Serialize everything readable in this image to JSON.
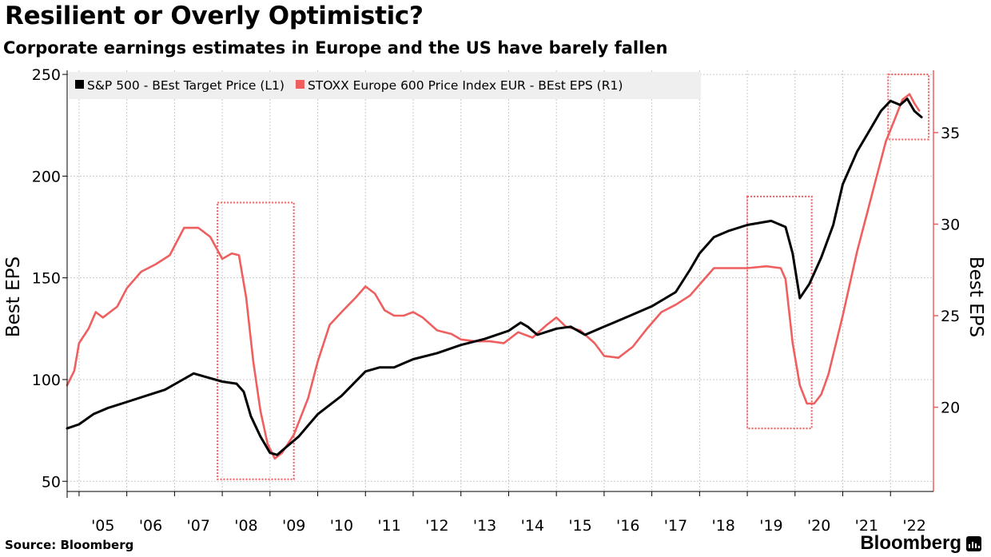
{
  "title": "Resilient or Overly Optimistic?",
  "subtitle": "Corporate earnings estimates in Europe and the US have barely fallen",
  "source": "Source: Bloomberg",
  "brand": "Bloomberg",
  "brand_icon": "bloomberg-terminal-icon",
  "colors": {
    "sp500": "#000000",
    "stoxx": "#ef5f5f",
    "highlight": "#ef5f5f",
    "grid": "#c8c8c8"
  },
  "chart_data": {
    "type": "line",
    "title": "Resilient or Overly Optimistic?",
    "subtitle": "Corporate earnings estimates in Europe and the US have barely fallen",
    "ylabel_left": "Best EPS",
    "ylabel_right": "Best EPS",
    "xlim": [
      2004.75,
      2022.9
    ],
    "ylim_left": [
      45,
      252
    ],
    "ylim_right": [
      15.4,
      38.4
    ],
    "y_ticks_left": [
      250,
      200,
      150,
      100,
      50
    ],
    "y_ticks_right": [
      35,
      30,
      25,
      20
    ],
    "x_ticks": [
      {
        "x": 2005.0,
        "label": "'05"
      },
      {
        "x": 2006.0,
        "label": "'06"
      },
      {
        "x": 2007.0,
        "label": "'07"
      },
      {
        "x": 2008.0,
        "label": "'08"
      },
      {
        "x": 2009.0,
        "label": "'09"
      },
      {
        "x": 2010.0,
        "label": "'10"
      },
      {
        "x": 2011.0,
        "label": "'11"
      },
      {
        "x": 2012.0,
        "label": "'12"
      },
      {
        "x": 2013.0,
        "label": "'13"
      },
      {
        "x": 2014.0,
        "label": "'14"
      },
      {
        "x": 2015.0,
        "label": "'15"
      },
      {
        "x": 2016.0,
        "label": "'16"
      },
      {
        "x": 2017.0,
        "label": "'17"
      },
      {
        "x": 2018.0,
        "label": "'18"
      },
      {
        "x": 2019.0,
        "label": "'19"
      },
      {
        "x": 2020.0,
        "label": "'20"
      },
      {
        "x": 2021.0,
        "label": "'21"
      },
      {
        "x": 2022.0,
        "label": "'22"
      }
    ],
    "legend": [
      {
        "name": "S&P 500 - BEst Target Price (L1)",
        "color": "#000000"
      },
      {
        "name": "STOXX Europe 600 Price Index EUR - BEst EPS (R1)",
        "color": "#ef5f5f"
      }
    ],
    "series": [
      {
        "name": "S&P 500 - BEst Target Price (L1)",
        "axis": "left",
        "color": "#000000",
        "points": [
          [
            2004.75,
            76
          ],
          [
            2005.0,
            78
          ],
          [
            2005.3,
            83
          ],
          [
            2005.6,
            86
          ],
          [
            2006.0,
            89
          ],
          [
            2006.4,
            92
          ],
          [
            2006.8,
            95
          ],
          [
            2007.1,
            99
          ],
          [
            2007.4,
            103
          ],
          [
            2007.7,
            101
          ],
          [
            2008.0,
            99
          ],
          [
            2008.3,
            98
          ],
          [
            2008.45,
            94
          ],
          [
            2008.6,
            82
          ],
          [
            2008.8,
            72
          ],
          [
            2009.0,
            64
          ],
          [
            2009.15,
            63
          ],
          [
            2009.3,
            66
          ],
          [
            2009.6,
            72
          ],
          [
            2010.0,
            83
          ],
          [
            2010.5,
            92
          ],
          [
            2011.0,
            104
          ],
          [
            2011.3,
            106
          ],
          [
            2011.6,
            106
          ],
          [
            2012.0,
            110
          ],
          [
            2012.5,
            113
          ],
          [
            2013.0,
            117
          ],
          [
            2013.5,
            120
          ],
          [
            2014.0,
            124
          ],
          [
            2014.25,
            128
          ],
          [
            2014.4,
            126
          ],
          [
            2014.6,
            122
          ],
          [
            2015.0,
            125
          ],
          [
            2015.3,
            126
          ],
          [
            2015.6,
            122
          ],
          [
            2016.0,
            126
          ],
          [
            2016.5,
            131
          ],
          [
            2017.0,
            136
          ],
          [
            2017.5,
            143
          ],
          [
            2017.8,
            154
          ],
          [
            2018.0,
            162
          ],
          [
            2018.3,
            170
          ],
          [
            2018.6,
            173
          ],
          [
            2019.0,
            176
          ],
          [
            2019.5,
            178
          ],
          [
            2019.8,
            175
          ],
          [
            2019.95,
            162
          ],
          [
            2020.1,
            140
          ],
          [
            2020.3,
            147
          ],
          [
            2020.55,
            160
          ],
          [
            2020.8,
            176
          ],
          [
            2021.0,
            196
          ],
          [
            2021.3,
            212
          ],
          [
            2021.6,
            224
          ],
          [
            2021.8,
            232
          ],
          [
            2022.0,
            237
          ],
          [
            2022.2,
            235
          ],
          [
            2022.35,
            238
          ],
          [
            2022.5,
            232
          ],
          [
            2022.65,
            229
          ]
        ]
      },
      {
        "name": "STOXX Europe 600 Price Index EUR - BEst EPS (R1)",
        "axis": "right",
        "color": "#ef5f5f",
        "points": [
          [
            2004.75,
            21.2
          ],
          [
            2004.9,
            22.0
          ],
          [
            2005.0,
            23.5
          ],
          [
            2005.2,
            24.3
          ],
          [
            2005.35,
            25.2
          ],
          [
            2005.5,
            24.9
          ],
          [
            2005.8,
            25.5
          ],
          [
            2006.0,
            26.5
          ],
          [
            2006.3,
            27.4
          ],
          [
            2006.6,
            27.8
          ],
          [
            2006.9,
            28.3
          ],
          [
            2007.2,
            29.8
          ],
          [
            2007.5,
            29.8
          ],
          [
            2007.75,
            29.3
          ],
          [
            2008.0,
            28.1
          ],
          [
            2008.2,
            28.4
          ],
          [
            2008.35,
            28.3
          ],
          [
            2008.5,
            26.0
          ],
          [
            2008.65,
            22.5
          ],
          [
            2008.8,
            19.8
          ],
          [
            2008.95,
            18.0
          ],
          [
            2009.1,
            17.2
          ],
          [
            2009.25,
            17.5
          ],
          [
            2009.5,
            18.5
          ],
          [
            2009.8,
            20.5
          ],
          [
            2010.0,
            22.5
          ],
          [
            2010.25,
            24.5
          ],
          [
            2010.5,
            25.2
          ],
          [
            2010.8,
            26.0
          ],
          [
            2011.0,
            26.6
          ],
          [
            2011.2,
            26.2
          ],
          [
            2011.4,
            25.3
          ],
          [
            2011.6,
            25.0
          ],
          [
            2011.8,
            25.0
          ],
          [
            2012.0,
            25.2
          ],
          [
            2012.2,
            24.9
          ],
          [
            2012.5,
            24.2
          ],
          [
            2012.8,
            24.0
          ],
          [
            2013.0,
            23.7
          ],
          [
            2013.3,
            23.6
          ],
          [
            2013.6,
            23.6
          ],
          [
            2013.9,
            23.5
          ],
          [
            2014.2,
            24.1
          ],
          [
            2014.5,
            23.8
          ],
          [
            2014.8,
            24.5
          ],
          [
            2015.0,
            24.9
          ],
          [
            2015.2,
            24.4
          ],
          [
            2015.5,
            24.2
          ],
          [
            2015.8,
            23.5
          ],
          [
            2016.0,
            22.8
          ],
          [
            2016.3,
            22.7
          ],
          [
            2016.6,
            23.3
          ],
          [
            2016.9,
            24.3
          ],
          [
            2017.2,
            25.2
          ],
          [
            2017.5,
            25.6
          ],
          [
            2017.8,
            26.1
          ],
          [
            2018.0,
            26.7
          ],
          [
            2018.3,
            27.6
          ],
          [
            2018.6,
            27.6
          ],
          [
            2019.0,
            27.6
          ],
          [
            2019.4,
            27.7
          ],
          [
            2019.7,
            27.6
          ],
          [
            2019.8,
            27.0
          ],
          [
            2019.95,
            23.5
          ],
          [
            2020.1,
            21.2
          ],
          [
            2020.25,
            20.2
          ],
          [
            2020.4,
            20.2
          ],
          [
            2020.55,
            20.7
          ],
          [
            2020.7,
            21.8
          ],
          [
            2021.0,
            25.0
          ],
          [
            2021.3,
            28.5
          ],
          [
            2021.5,
            30.5
          ],
          [
            2021.7,
            32.5
          ],
          [
            2021.9,
            34.5
          ],
          [
            2022.1,
            35.8
          ],
          [
            2022.25,
            36.8
          ],
          [
            2022.4,
            37.1
          ],
          [
            2022.5,
            36.6
          ],
          [
            2022.6,
            36.2
          ]
        ]
      }
    ],
    "highlight_boxes": [
      {
        "x0": 2007.9,
        "x1": 2009.5,
        "y0": 51,
        "y1": 187
      },
      {
        "x0": 2019.0,
        "x1": 2020.35,
        "y0": 76,
        "y1": 190
      },
      {
        "x0": 2021.95,
        "x1": 2022.8,
        "y0": 218,
        "y1": 250
      }
    ]
  }
}
